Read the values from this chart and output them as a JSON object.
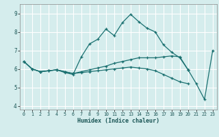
{
  "xlabel": "Humidex (Indice chaleur)",
  "bg_color": "#d5eded",
  "grid_color": "#ffffff",
  "line_color": "#1a7070",
  "xlim": [
    -0.5,
    23.5
  ],
  "ylim": [
    3.8,
    9.5
  ],
  "yticks": [
    4,
    5,
    6,
    7,
    8,
    9
  ],
  "xticks": [
    0,
    1,
    2,
    3,
    4,
    5,
    6,
    7,
    8,
    9,
    10,
    11,
    12,
    13,
    14,
    15,
    16,
    17,
    18,
    19,
    20,
    21,
    22,
    23
  ],
  "line1_x": [
    0,
    1,
    2,
    3,
    4,
    5,
    6,
    7,
    8,
    9,
    10,
    11,
    12,
    13,
    14,
    15,
    16,
    17,
    18,
    19,
    20
  ],
  "line1_y": [
    6.4,
    6.0,
    5.85,
    5.9,
    5.95,
    5.8,
    5.7,
    6.65,
    7.35,
    7.6,
    8.15,
    7.8,
    8.5,
    8.95,
    8.55,
    8.2,
    8.0,
    7.3,
    6.9,
    6.6,
    5.95
  ],
  "line2_x": [
    0,
    1,
    2,
    3,
    4,
    5,
    6,
    7,
    8,
    9,
    10,
    11,
    12,
    13,
    14,
    15,
    16,
    17,
    18,
    19,
    20
  ],
  "line2_y": [
    6.4,
    6.0,
    5.85,
    5.9,
    5.95,
    5.85,
    5.75,
    5.85,
    5.95,
    6.05,
    6.15,
    6.3,
    6.4,
    6.5,
    6.6,
    6.6,
    6.6,
    6.65,
    6.7,
    6.65,
    5.95
  ],
  "line3_x": [
    0,
    1,
    2,
    3,
    4,
    5,
    6,
    7,
    8,
    9,
    10,
    11,
    12,
    13,
    14,
    15,
    16,
    17,
    18,
    19,
    20
  ],
  "line3_y": [
    6.4,
    6.0,
    5.85,
    5.9,
    5.95,
    5.85,
    5.75,
    5.8,
    5.85,
    5.9,
    5.95,
    6.0,
    6.05,
    6.1,
    6.05,
    6.0,
    5.9,
    5.7,
    5.5,
    5.3,
    5.2
  ],
  "line4_x": [
    20,
    21,
    22,
    23
  ],
  "line4_y": [
    5.95,
    5.2,
    4.35,
    7.0
  ]
}
